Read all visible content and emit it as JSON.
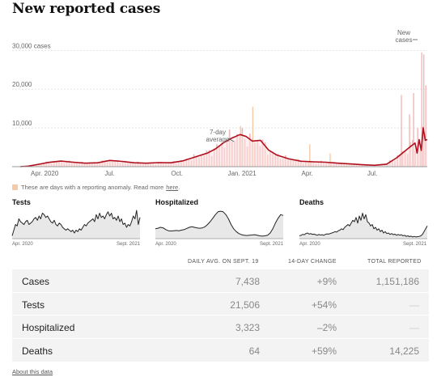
{
  "title": "New reported cases",
  "chart_data": {
    "type": "bar",
    "title": "New reported cases",
    "y_unit": "cases",
    "y_ticks": [
      10000,
      20000,
      30000
    ],
    "y_tick_labels": [
      "10,000",
      "20,000",
      "30,000 cases"
    ],
    "ylim": [
      0,
      33000
    ],
    "x_ticks": [
      "Apr. 2020",
      "Jul.",
      "Oct.",
      "Jan. 2021",
      "Apr.",
      "Jul."
    ],
    "annotations": [
      "7-day average",
      "New cases"
    ],
    "average_line_color": "#b0101e",
    "bar_color": "#f4b6b6",
    "anomaly_color": "#f7c9a4",
    "series": [
      {
        "name": "7-day average",
        "points": [
          [
            0,
            0
          ],
          [
            0.02,
            150
          ],
          [
            0.05,
            700
          ],
          [
            0.07,
            1100
          ],
          [
            0.1,
            1450
          ],
          [
            0.13,
            1150
          ],
          [
            0.16,
            900
          ],
          [
            0.19,
            1000
          ],
          [
            0.22,
            1600
          ],
          [
            0.25,
            1350
          ],
          [
            0.28,
            1000
          ],
          [
            0.31,
            900
          ],
          [
            0.34,
            1050
          ],
          [
            0.37,
            1000
          ],
          [
            0.4,
            1500
          ],
          [
            0.43,
            2500
          ],
          [
            0.46,
            3500
          ],
          [
            0.48,
            4600
          ],
          [
            0.5,
            6200
          ],
          [
            0.52,
            7400
          ],
          [
            0.54,
            8300
          ],
          [
            0.555,
            7800
          ],
          [
            0.57,
            6600
          ],
          [
            0.59,
            6800
          ],
          [
            0.61,
            4300
          ],
          [
            0.63,
            3000
          ],
          [
            0.66,
            2000
          ],
          [
            0.69,
            1400
          ],
          [
            0.72,
            1250
          ],
          [
            0.75,
            1150
          ],
          [
            0.78,
            900
          ],
          [
            0.81,
            700
          ],
          [
            0.84,
            500
          ],
          [
            0.87,
            350
          ],
          [
            0.9,
            650
          ],
          [
            0.925,
            2300
          ],
          [
            0.945,
            4000
          ],
          [
            0.96,
            5300
          ],
          [
            0.97,
            6100
          ],
          [
            0.975,
            3500
          ],
          [
            0.98,
            7000
          ],
          [
            0.985,
            4200
          ],
          [
            0.99,
            10000
          ],
          [
            0.995,
            6800
          ],
          [
            1.0,
            7000
          ]
        ]
      }
    ],
    "spikes": [
      {
        "pos": 0.57,
        "value": 15500
      },
      {
        "pos": 0.54,
        "value": 10500
      },
      {
        "pos": 0.6,
        "value": 5200
      },
      {
        "pos": 0.71,
        "value": 5800
      },
      {
        "pos": 0.76,
        "value": 3400
      },
      {
        "pos": 0.935,
        "value": 18500
      },
      {
        "pos": 0.955,
        "value": 13500
      },
      {
        "pos": 0.965,
        "value": 19000
      },
      {
        "pos": 0.975,
        "value": 10000
      },
      {
        "pos": 0.985,
        "value": 29500
      },
      {
        "pos": 0.99,
        "value": 29000
      },
      {
        "pos": 0.995,
        "value": 21000
      }
    ]
  },
  "note": {
    "text": "These are days with a reporting anomaly. Read more",
    "link": "here",
    "end": "."
  },
  "mini_charts": [
    {
      "title": "Tests",
      "start_label": "Apr. 2020",
      "end_label": "Sept. 2021",
      "values": [
        0.1,
        0.3,
        0.5,
        0.45,
        0.7,
        0.6,
        0.55,
        0.5,
        0.6,
        0.65,
        0.5,
        0.55,
        0.6,
        0.7,
        0.75,
        0.65,
        0.8,
        0.7,
        0.9,
        0.85,
        0.75,
        0.8,
        0.7,
        0.6,
        0.55,
        0.65,
        0.5,
        0.45,
        0.55,
        0.5,
        0.4,
        0.35,
        0.3,
        0.35,
        0.3,
        0.25,
        0.3,
        0.2,
        0.3,
        0.25,
        0.35,
        0.3,
        0.4,
        0.5,
        0.45,
        0.55,
        0.6,
        0.65,
        0.7,
        0.6,
        0.85,
        0.7,
        0.9,
        0.75,
        0.8,
        0.7,
        0.85,
        0.95,
        0.8,
        0.9,
        0.7,
        0.75,
        0.65,
        0.8,
        0.6,
        0.7,
        0.5,
        0.55,
        0.4,
        0.5,
        0.45,
        0.6,
        0.8,
        0.7,
        1.0,
        0.5,
        0.75
      ]
    },
    {
      "title": "Hospitalized",
      "start_label": "Apr. 2020",
      "end_label": "Sept. 2021",
      "values": [
        0.35,
        0.37,
        0.4,
        0.38,
        0.32,
        0.28,
        0.27,
        0.28,
        0.29,
        0.28,
        0.3,
        0.32,
        0.36,
        0.4,
        0.42,
        0.4,
        0.38,
        0.37,
        0.38,
        0.42,
        0.5,
        0.6,
        0.72,
        0.85,
        0.95,
        0.97,
        0.95,
        0.85,
        0.7,
        0.5,
        0.35,
        0.25,
        0.18,
        0.14,
        0.12,
        0.11,
        0.12,
        0.13,
        0.14,
        0.12,
        0.1,
        0.09,
        0.1,
        0.12,
        0.2,
        0.35,
        0.55,
        0.72,
        0.85,
        0.82
      ]
    },
    {
      "title": "Deaths",
      "start_label": "Apr. 2020",
      "end_label": "Sept. 2021",
      "values": [
        0.1,
        0.12,
        0.15,
        0.14,
        0.18,
        0.2,
        0.16,
        0.18,
        0.15,
        0.16,
        0.14,
        0.12,
        0.15,
        0.13,
        0.14,
        0.12,
        0.15,
        0.17,
        0.16,
        0.18,
        0.2,
        0.22,
        0.25,
        0.23,
        0.28,
        0.3,
        0.35,
        0.32,
        0.4,
        0.45,
        0.5,
        0.45,
        0.55,
        0.65,
        0.6,
        0.75,
        0.55,
        0.8,
        0.65,
        0.9,
        0.7,
        0.85,
        0.6,
        0.55,
        0.45,
        0.5,
        0.35,
        0.4,
        0.3,
        0.35,
        0.25,
        0.3,
        0.2,
        0.25,
        0.18,
        0.2,
        0.15,
        0.18,
        0.14,
        0.16,
        0.12,
        0.15,
        0.12,
        0.14,
        0.1,
        0.12,
        0.08,
        0.1,
        0.07,
        0.09,
        0.06,
        0.08,
        0.06,
        0.07,
        0.08,
        0.1,
        0.15,
        0.25,
        0.35,
        0.45
      ]
    }
  ],
  "table": {
    "headers": [
      "Daily avg. on Sept. 19",
      "14-day change",
      "Total reported"
    ],
    "rows": [
      {
        "name": "Cases",
        "avg": "7,438",
        "change": "+9%",
        "total": "1,151,186"
      },
      {
        "name": "Tests",
        "avg": "21,506",
        "change": "+54%",
        "total": "—"
      },
      {
        "name": "Hospitalized",
        "avg": "3,323",
        "change": "–2%",
        "total": "—"
      },
      {
        "name": "Deaths",
        "avg": "64",
        "change": "+59%",
        "total": "14,225"
      }
    ]
  },
  "footer": {
    "about": "About this data"
  }
}
